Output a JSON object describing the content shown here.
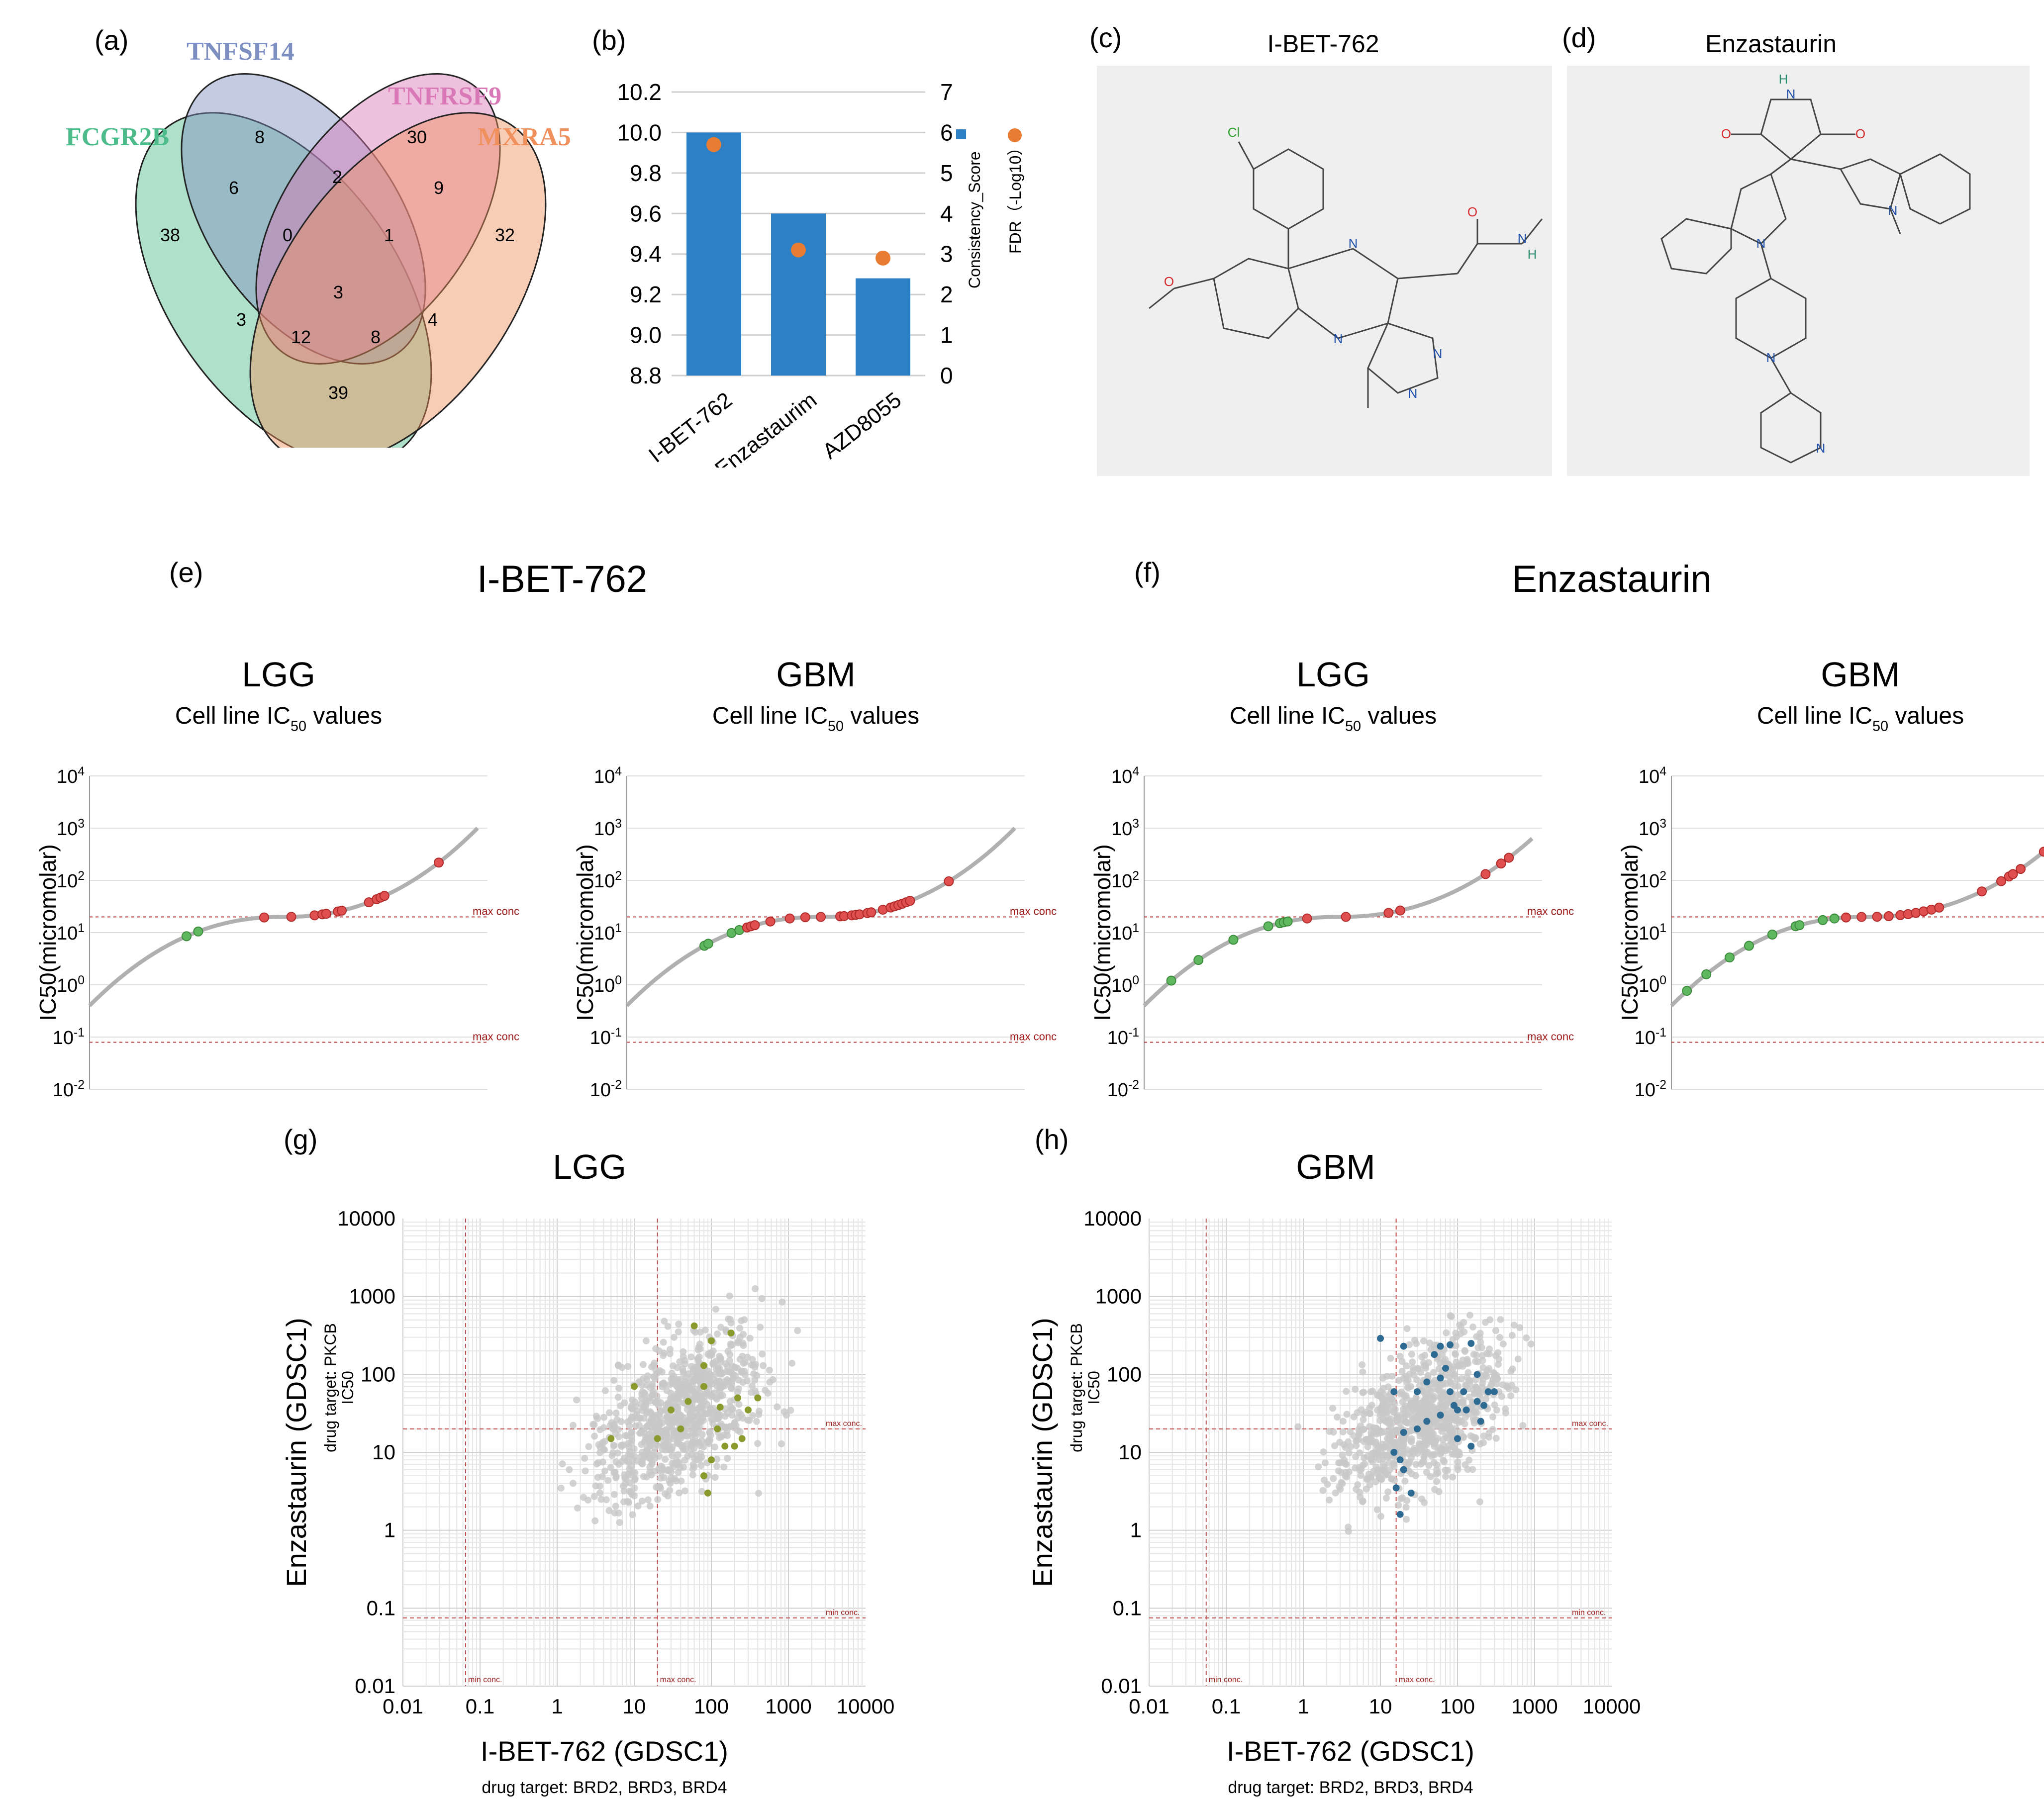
{
  "panel_labels": {
    "a": "(a)",
    "b": "(b)",
    "c": "(c)",
    "d": "(d)",
    "e": "(e)",
    "f": "(f)",
    "g": "(g)",
    "h": "(h)"
  },
  "venn": {
    "sets": [
      {
        "name": "FCGR2B",
        "color": "#4dbb8a"
      },
      {
        "name": "TNFSF14",
        "color": "#7d8fc0"
      },
      {
        "name": "TNFRSF9",
        "color": "#d978b6"
      },
      {
        "name": "MXRA5",
        "color": "#f0905c"
      }
    ],
    "regions": [
      {
        "id": "A",
        "count": "38"
      },
      {
        "id": "B",
        "count": "8"
      },
      {
        "id": "C",
        "count": "30"
      },
      {
        "id": "D",
        "count": "32"
      },
      {
        "id": "AB",
        "count": "6"
      },
      {
        "id": "BC",
        "count": "2"
      },
      {
        "id": "CD",
        "count": "9"
      },
      {
        "id": "ABC",
        "count": "0"
      },
      {
        "id": "BCD",
        "count": "1"
      },
      {
        "id": "ABCD",
        "count": "3"
      },
      {
        "id": "AC",
        "count": "3"
      },
      {
        "id": "ACD",
        "count": "12"
      },
      {
        "id": "ABD",
        "count": "8"
      },
      {
        "id": "BD",
        "count": "4"
      },
      {
        "id": "AD",
        "count": "39"
      }
    ]
  },
  "chart_data": [
    {
      "type": "bar",
      "panel": "b",
      "categories": [
        "I-BET-762",
        "Enzastaurim",
        "AZD8055"
      ],
      "series": [
        {
          "name": "Consistency_Score",
          "axis": "left",
          "values": [
            10.0,
            9.6,
            9.28
          ],
          "color": "#2b80c6"
        },
        {
          "name": "FDR (-Log10)",
          "axis": "right",
          "values": [
            5.7,
            3.1,
            2.9
          ],
          "color": "#e87c33"
        }
      ],
      "ylim": [
        8.8,
        10.2
      ],
      "left_ticks": [
        "8.8",
        "9.0",
        "9.2",
        "9.4",
        "9.6",
        "9.8",
        "10.0",
        "10.2"
      ],
      "right_ticks": [
        "0",
        "1",
        "2",
        "3",
        "4",
        "5",
        "6",
        "7"
      ],
      "legend": [
        {
          "label": "Consistency_Score",
          "color": "#2b80c6"
        },
        {
          "label": "FDR（-Log10）",
          "color": "#e87c33"
        }
      ]
    },
    {
      "type": "line",
      "panel": "e",
      "group_title": "I-BET-762",
      "title": "LGG",
      "subtitle": "Cell line IC50 values",
      "ylabel": "IC50(micromolar)",
      "ylim_log10": [
        -2,
        4
      ],
      "ytick_labels": [
        "10-2",
        "10-1",
        "100",
        "101",
        "102",
        "103",
        "104"
      ],
      "curve": {
        "min_log10": -0.4,
        "max_log10": 3.0,
        "color": "#b0b0b0"
      },
      "ref_lines": [
        {
          "log10": 1.3,
          "label": "max conc"
        },
        {
          "log10": -1.1,
          "label": "max conc"
        }
      ],
      "green_points": [
        0.25,
        0.28
      ],
      "red_points": [
        0.45,
        0.52,
        0.58,
        0.6,
        0.61,
        0.64,
        0.65,
        0.72,
        0.74,
        0.75,
        0.76,
        0.9
      ]
    },
    {
      "type": "line",
      "panel": "e",
      "group_title": "I-BET-762",
      "title": "GBM",
      "subtitle": "Cell line IC50 values",
      "ylabel": "IC50(micromolar)",
      "ylim_log10": [
        -2,
        4
      ],
      "ytick_labels": [
        "10-2",
        "10-1",
        "100",
        "101",
        "102",
        "103",
        "104"
      ],
      "curve": {
        "min_log10": -0.4,
        "max_log10": 3.0,
        "color": "#b0b0b0"
      },
      "ref_lines": [
        {
          "log10": 1.3,
          "label": "max conc"
        },
        {
          "log10": -1.1,
          "label": "max conc"
        }
      ],
      "green_points": [
        0.2,
        0.21,
        0.27,
        0.29
      ],
      "red_points": [
        0.31,
        0.32,
        0.33,
        0.37,
        0.42,
        0.46,
        0.5,
        0.55,
        0.56,
        0.58,
        0.59,
        0.6,
        0.62,
        0.63,
        0.66,
        0.68,
        0.69,
        0.7,
        0.71,
        0.72,
        0.73,
        0.83
      ]
    },
    {
      "type": "line",
      "panel": "f",
      "group_title": "Enzastaurin",
      "title": "LGG",
      "subtitle": "Cell line IC50 values",
      "ylabel": "IC50(micromolar)",
      "ylim_log10": [
        -2,
        4
      ],
      "ytick_labels": [
        "10-2",
        "10-1",
        "100",
        "101",
        "102",
        "103",
        "104"
      ],
      "curve": {
        "min_log10": -0.4,
        "max_log10": 2.8,
        "color": "#b0b0b0"
      },
      "ref_lines": [
        {
          "log10": 1.3,
          "label": "max conc"
        },
        {
          "log10": -1.1,
          "label": "max conc"
        }
      ],
      "green_points": [
        0.07,
        0.14,
        0.23,
        0.32,
        0.35,
        0.36,
        0.37
      ],
      "red_points": [
        0.42,
        0.52,
        0.63,
        0.66,
        0.88,
        0.92,
        0.94
      ]
    },
    {
      "type": "line",
      "panel": "f",
      "group_title": "Enzastaurin",
      "title": "GBM",
      "subtitle": "Cell line IC50 values",
      "ylabel": "IC50(micromolar)",
      "ylim_log10": [
        -2,
        4
      ],
      "ytick_labels": [
        "10-2",
        "10-1",
        "100",
        "101",
        "102",
        "103",
        "104"
      ],
      "curve": {
        "min_log10": -0.4,
        "max_log10": 2.8,
        "color": "#b0b0b0"
      },
      "ref_lines": [
        {
          "log10": 1.3,
          "label": "max conc"
        },
        {
          "log10": -1.1,
          "label": "max conc"
        }
      ],
      "green_points": [
        0.04,
        0.09,
        0.15,
        0.2,
        0.26,
        0.32,
        0.33,
        0.39,
        0.42
      ],
      "red_points": [
        0.45,
        0.49,
        0.53,
        0.56,
        0.59,
        0.61,
        0.63,
        0.65,
        0.67,
        0.69,
        0.8,
        0.85,
        0.87,
        0.88,
        0.9,
        0.96
      ]
    },
    {
      "type": "scatter",
      "panel": "g",
      "title": "LGG",
      "xlabel": "I-BET-762 (GDSC1)",
      "xsublabel": "drug target: BRD2, BRD3, BRD4",
      "ylabel": "Enzastaurin (GDSC1)",
      "ysublabel": "drug target: PKCB",
      "ysublabel2": "IC50",
      "xlim": [
        0.01,
        10000
      ],
      "ylim": [
        0.01,
        10000
      ],
      "tick_labels": [
        "0.01",
        "0.1",
        "1",
        "10",
        "100",
        "1000",
        "10000"
      ],
      "ref_lines_x": [
        {
          "value": 0.065,
          "label": "min conc."
        },
        {
          "value": 20,
          "label": "max conc."
        }
      ],
      "ref_lines_y": [
        {
          "value": 20,
          "label": "max conc."
        },
        {
          "value": 0.075,
          "label": "min conc."
        }
      ],
      "highlight_color": "#8a9a2c",
      "highlight_points": [
        [
          10,
          70
        ],
        [
          30,
          35
        ],
        [
          50,
          45
        ],
        [
          60,
          420
        ],
        [
          80,
          130
        ],
        [
          80,
          70
        ],
        [
          100,
          270
        ],
        [
          40,
          20
        ],
        [
          20,
          15
        ],
        [
          120,
          20
        ],
        [
          150,
          12
        ],
        [
          200,
          12
        ],
        [
          180,
          340
        ],
        [
          220,
          50
        ],
        [
          300,
          35
        ],
        [
          250,
          15
        ],
        [
          100,
          8
        ],
        [
          80,
          5
        ],
        [
          90,
          3
        ],
        [
          400,
          50
        ],
        [
          130,
          38
        ],
        [
          5,
          15
        ]
      ],
      "background_color": "#c8c8c8"
    },
    {
      "type": "scatter",
      "panel": "h",
      "title": "GBM",
      "xlabel": "I-BET-762 (GDSC1)",
      "xsublabel": "drug target: BRD2, BRD3, BRD4",
      "ylabel": "Enzastaurin (GDSC1)",
      "ysublabel": "drug target: PKCB",
      "ysublabel2": "IC50",
      "xlim": [
        0.01,
        10000
      ],
      "ylim": [
        0.01,
        10000
      ],
      "tick_labels": [
        "0.01",
        "0.1",
        "1",
        "10",
        "100",
        "1000",
        "10000"
      ],
      "ref_lines_x": [
        {
          "value": 0.055,
          "label": "min conc."
        },
        {
          "value": 16,
          "label": "max conc."
        }
      ],
      "ref_lines_y": [
        {
          "value": 20,
          "label": "max conc."
        },
        {
          "value": 0.075,
          "label": "min conc."
        }
      ],
      "highlight_color": "#2e6b93",
      "highlight_points": [
        [
          10,
          290
        ],
        [
          20,
          230
        ],
        [
          15,
          60
        ],
        [
          30,
          60
        ],
        [
          40,
          80
        ],
        [
          50,
          180
        ],
        [
          60,
          230
        ],
        [
          70,
          120
        ],
        [
          80,
          240
        ],
        [
          90,
          40
        ],
        [
          100,
          35
        ],
        [
          120,
          60
        ],
        [
          130,
          35
        ],
        [
          150,
          250
        ],
        [
          180,
          45
        ],
        [
          200,
          25
        ],
        [
          250,
          60
        ],
        [
          300,
          60
        ],
        [
          60,
          30
        ],
        [
          40,
          25
        ],
        [
          30,
          20
        ],
        [
          20,
          18
        ],
        [
          15,
          10
        ],
        [
          18,
          8
        ],
        [
          20,
          6
        ],
        [
          25,
          3
        ],
        [
          18,
          1.6
        ],
        [
          16,
          3.5
        ],
        [
          100,
          15
        ],
        [
          150,
          12
        ],
        [
          180,
          100
        ],
        [
          220,
          40
        ],
        [
          60,
          90
        ],
        [
          80,
          60
        ]
      ],
      "background_color": "#c8c8c8"
    }
  ],
  "molecules": {
    "c": {
      "title": "I-BET-762",
      "atoms": [
        "Cl",
        "O",
        "N",
        "N",
        "H",
        "N",
        "N",
        "N",
        "O"
      ]
    },
    "d": {
      "title": "Enzastaurin",
      "atoms": [
        "O",
        "N",
        "H",
        "O",
        "N",
        "N",
        "N",
        "N"
      ]
    }
  }
}
